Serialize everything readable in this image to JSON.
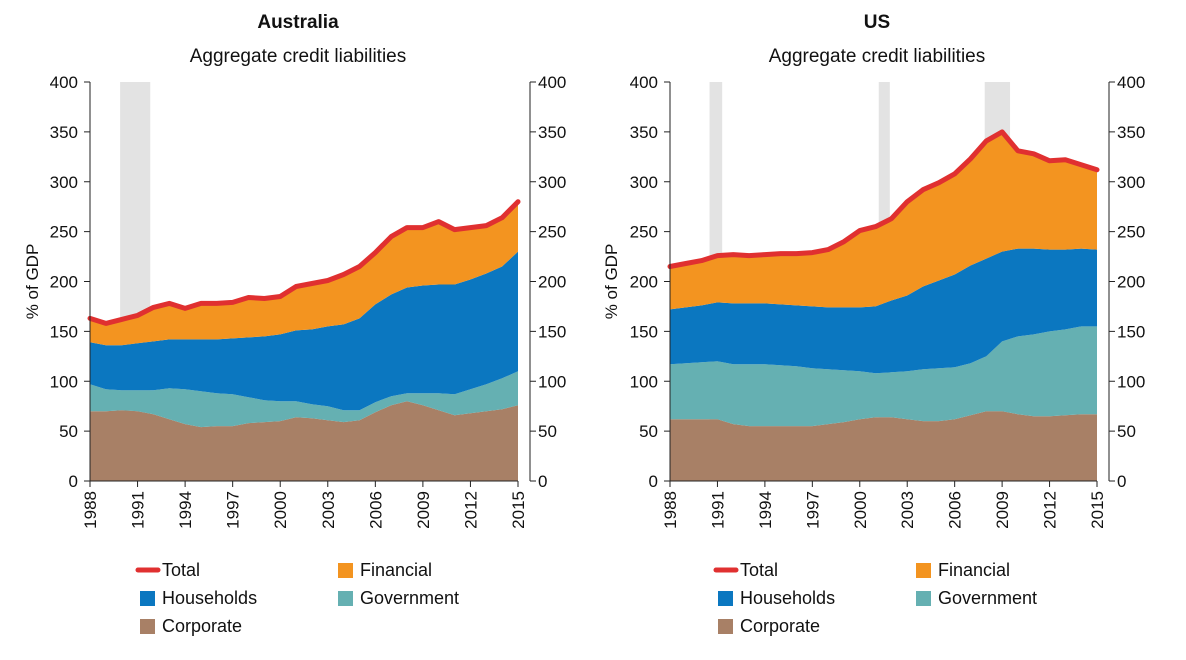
{
  "colors": {
    "Total": "#e03030",
    "Financial": "#f39420",
    "Households": "#0b77c0",
    "Government": "#65b0b2",
    "Corporate": "#a88066",
    "recession": "#e3e3e3",
    "axis": "#222222"
  },
  "chart_data": [
    {
      "type": "area",
      "title": "Australia",
      "subtitle": "Aggregate credit liabilities",
      "ylabel": "% of GDP",
      "xlabel": "",
      "ylim": [
        0,
        400
      ],
      "xlim": [
        1988,
        2015
      ],
      "yticks": [
        "0",
        "50",
        "100",
        "150",
        "200",
        "250",
        "300",
        "350",
        "400"
      ],
      "yticks_right": [
        "0",
        "50",
        "100",
        "150",
        "200",
        "250",
        "300",
        "350",
        "400"
      ],
      "xticks": [
        "1988",
        "1991",
        "1994",
        "1997",
        "2000",
        "2003",
        "2006",
        "2009",
        "2012",
        "2015"
      ],
      "recessions": [
        [
          1989.9,
          1991.8
        ]
      ],
      "x": [
        1988,
        1989,
        1990,
        1991,
        1992,
        1993,
        1994,
        1995,
        1996,
        1997,
        1998,
        1999,
        2000,
        2001,
        2002,
        2003,
        2004,
        2005,
        2006,
        2007,
        2008,
        2009,
        2010,
        2011,
        2012,
        2013,
        2014,
        2015
      ],
      "series": [
        {
          "name": "Corporate",
          "values": [
            70,
            70,
            71,
            70,
            67,
            62,
            57,
            54,
            55,
            55,
            58,
            59,
            60,
            64,
            63,
            61,
            59,
            61,
            69,
            76,
            80,
            76,
            71,
            66,
            68,
            70,
            72,
            76
          ]
        },
        {
          "name": "Government",
          "values": [
            27,
            22,
            20,
            21,
            24,
            31,
            35,
            36,
            33,
            32,
            26,
            22,
            20,
            16,
            14,
            14,
            12,
            10,
            10,
            9,
            8,
            12,
            17,
            21,
            24,
            27,
            31,
            34
          ]
        },
        {
          "name": "Households",
          "values": [
            42,
            44,
            45,
            47,
            49,
            49,
            50,
            52,
            54,
            56,
            60,
            64,
            67,
            71,
            75,
            80,
            86,
            92,
            98,
            102,
            106,
            108,
            109,
            110,
            110,
            111,
            112,
            120
          ]
        },
        {
          "name": "Financial",
          "values": [
            24,
            22,
            26,
            28,
            34,
            36,
            31,
            36,
            36,
            36,
            40,
            38,
            38,
            44,
            46,
            46,
            50,
            52,
            52,
            58,
            60,
            58,
            63,
            55,
            52,
            48,
            49,
            50
          ]
        }
      ],
      "total": {
        "name": "Total",
        "values": [
          163,
          158,
          162,
          166,
          174,
          178,
          173,
          178,
          178,
          179,
          184,
          183,
          185,
          195,
          198,
          201,
          207,
          215,
          229,
          245,
          254,
          254,
          260,
          252,
          254,
          256,
          264,
          280
        ]
      },
      "legend": [
        "Total",
        "Financial",
        "Households",
        "Government",
        "Corporate"
      ],
      "legend_position": "bottom"
    },
    {
      "type": "area",
      "title": "US",
      "subtitle": "Aggregate credit liabilities",
      "ylabel": "% of GDP",
      "xlabel": "",
      "ylim": [
        0,
        400
      ],
      "xlim": [
        1988,
        2015
      ],
      "yticks": [
        "0",
        "50",
        "100",
        "150",
        "200",
        "250",
        "300",
        "350",
        "400"
      ],
      "yticks_right": [
        "0",
        "50",
        "100",
        "150",
        "200",
        "250",
        "300",
        "350",
        "400"
      ],
      "xticks": [
        "1988",
        "1991",
        "1994",
        "1997",
        "2000",
        "2003",
        "2006",
        "2009",
        "2012",
        "2015"
      ],
      "recessions": [
        [
          1990.5,
          1991.3
        ],
        [
          2001.2,
          2001.9
        ],
        [
          2007.9,
          2009.5
        ]
      ],
      "x": [
        1988,
        1989,
        1990,
        1991,
        1992,
        1993,
        1994,
        1995,
        1996,
        1997,
        1998,
        1999,
        2000,
        2001,
        2002,
        2003,
        2004,
        2005,
        2006,
        2007,
        2008,
        2009,
        2010,
        2011,
        2012,
        2013,
        2014,
        2015
      ],
      "series": [
        {
          "name": "Corporate",
          "values": [
            62,
            62,
            62,
            62,
            57,
            55,
            55,
            55,
            55,
            55,
            57,
            59,
            62,
            64,
            64,
            62,
            60,
            60,
            62,
            66,
            70,
            70,
            67,
            65,
            65,
            66,
            67,
            67
          ]
        },
        {
          "name": "Government",
          "values": [
            55,
            56,
            57,
            58,
            60,
            62,
            62,
            61,
            60,
            58,
            55,
            52,
            48,
            44,
            45,
            48,
            52,
            53,
            52,
            52,
            55,
            70,
            78,
            82,
            85,
            86,
            88,
            88
          ]
        },
        {
          "name": "Households",
          "values": [
            55,
            56,
            57,
            59,
            61,
            61,
            61,
            61,
            61,
            62,
            62,
            63,
            64,
            67,
            72,
            76,
            83,
            88,
            93,
            98,
            98,
            90,
            88,
            86,
            82,
            80,
            78,
            77
          ]
        },
        {
          "name": "Financial",
          "values": [
            43,
            44,
            45,
            47,
            49,
            48,
            49,
            51,
            52,
            54,
            58,
            66,
            77,
            80,
            82,
            94,
            97,
            98,
            101,
            107,
            118,
            120,
            98,
            95,
            89,
            90,
            84,
            80
          ]
        }
      ],
      "total": {
        "name": "Total",
        "values": [
          215,
          218,
          221,
          226,
          227,
          226,
          227,
          228,
          228,
          229,
          232,
          240,
          251,
          255,
          263,
          280,
          292,
          299,
          308,
          323,
          341,
          350,
          331,
          328,
          321,
          322,
          317,
          312
        ]
      },
      "legend": [
        "Total",
        "Financial",
        "Households",
        "Government",
        "Corporate"
      ],
      "legend_position": "bottom"
    }
  ]
}
